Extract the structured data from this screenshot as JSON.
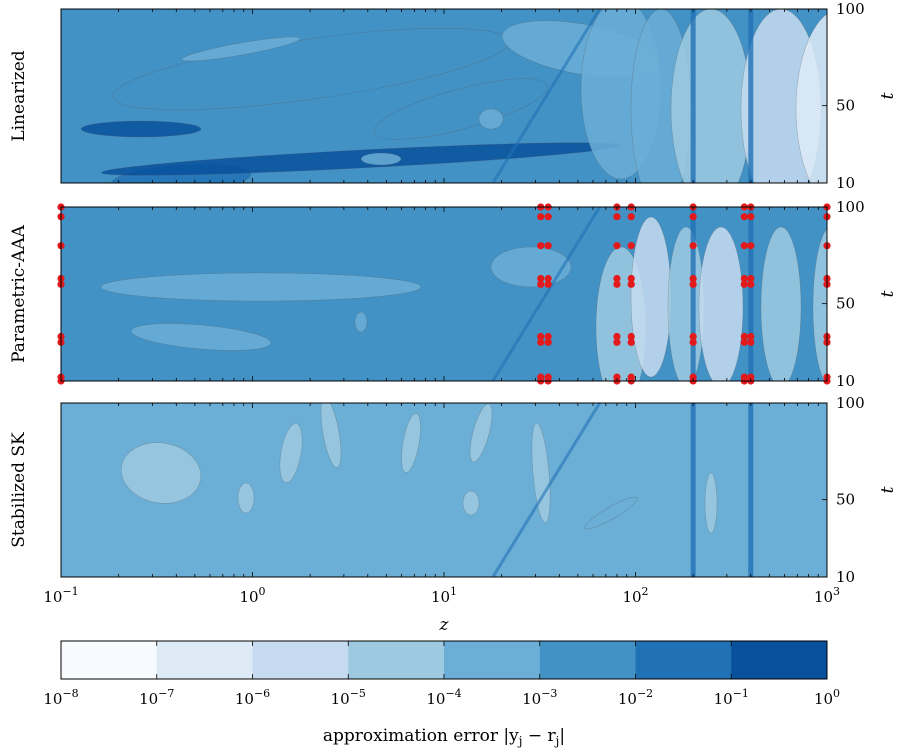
{
  "chart_data": {
    "type": "heatmap",
    "panels": [
      {
        "row_label": "Linearized",
        "ylabel": "t",
        "yticks": [
          "10",
          "50",
          "100"
        ],
        "y_values": [
          10,
          50,
          100
        ],
        "dominant_log10_error": -2.3
      },
      {
        "row_label": "Parametric-AAA",
        "ylabel": "t",
        "yticks": [
          "10",
          "50",
          "100"
        ],
        "y_values": [
          10,
          50,
          100
        ],
        "dominant_log10_error": -2.8,
        "interpolation_points": {
          "z": [
            0.1,
            32,
            35,
            80,
            95,
            200,
            370,
            400,
            1000
          ],
          "t": [
            10,
            12,
            30,
            33,
            60,
            63,
            80,
            95,
            100
          ]
        }
      },
      {
        "row_label": "Stabilized SK",
        "ylabel": "t",
        "yticks": [
          "10",
          "50",
          "100"
        ],
        "y_values": [
          10,
          50,
          100
        ],
        "dominant_log10_error": -3.5
      }
    ],
    "x_axis": {
      "label": "z",
      "scale": "log",
      "range": [
        0.1,
        1000
      ],
      "tick_values": [
        0.1,
        1,
        10,
        100,
        1000
      ],
      "tick_bases": [
        "10",
        "10",
        "10",
        "10",
        "10"
      ],
      "tick_exponents": [
        "−1",
        "0",
        "1",
        "2",
        "3"
      ]
    },
    "colorbar": {
      "label": "approximation error |y",
      "label_sub1": "j",
      "label_mid": " − r",
      "label_sub2": "j",
      "label_end": "|",
      "tick_log10": [
        -8,
        -7,
        -6,
        -5,
        -4,
        -3,
        -2,
        -1,
        0
      ],
      "tick_bases": [
        "10",
        "10",
        "10",
        "10",
        "10",
        "10",
        "10",
        "10",
        "10"
      ],
      "tick_exponents": [
        "−8",
        "−7",
        "−6",
        "−5",
        "−4",
        "−3",
        "−2",
        "−1",
        "0"
      ],
      "colors": [
        "#f7fbff",
        "#deebf7",
        "#c6dbef",
        "#9ecae1",
        "#6baed6",
        "#4292c6",
        "#2171b5",
        "#08519c"
      ]
    },
    "grid": false,
    "marker_color": "#e31a1c"
  }
}
